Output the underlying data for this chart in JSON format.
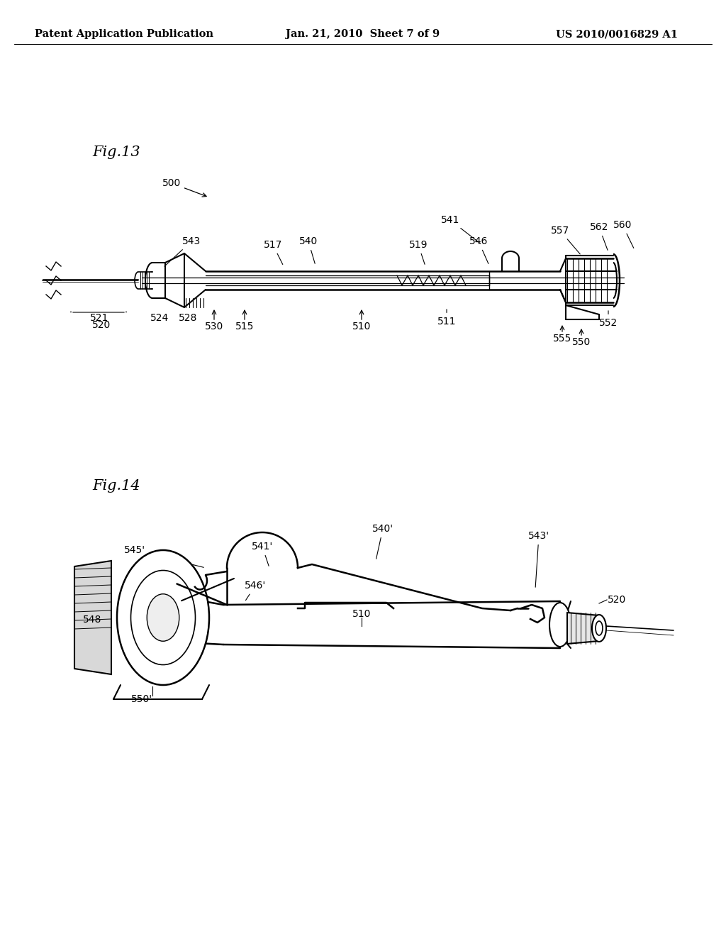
{
  "background_color": "#ffffff",
  "header_left": "Patent Application Publication",
  "header_center": "Jan. 21, 2010  Sheet 7 of 9",
  "header_right": "US 2010/0016829 A1",
  "fig13_label": "Fig.13",
  "fig14_label": "Fig.14",
  "line_color": "#000000",
  "font_size_header": 10.5,
  "font_size_fig": 15,
  "font_size_label": 10
}
